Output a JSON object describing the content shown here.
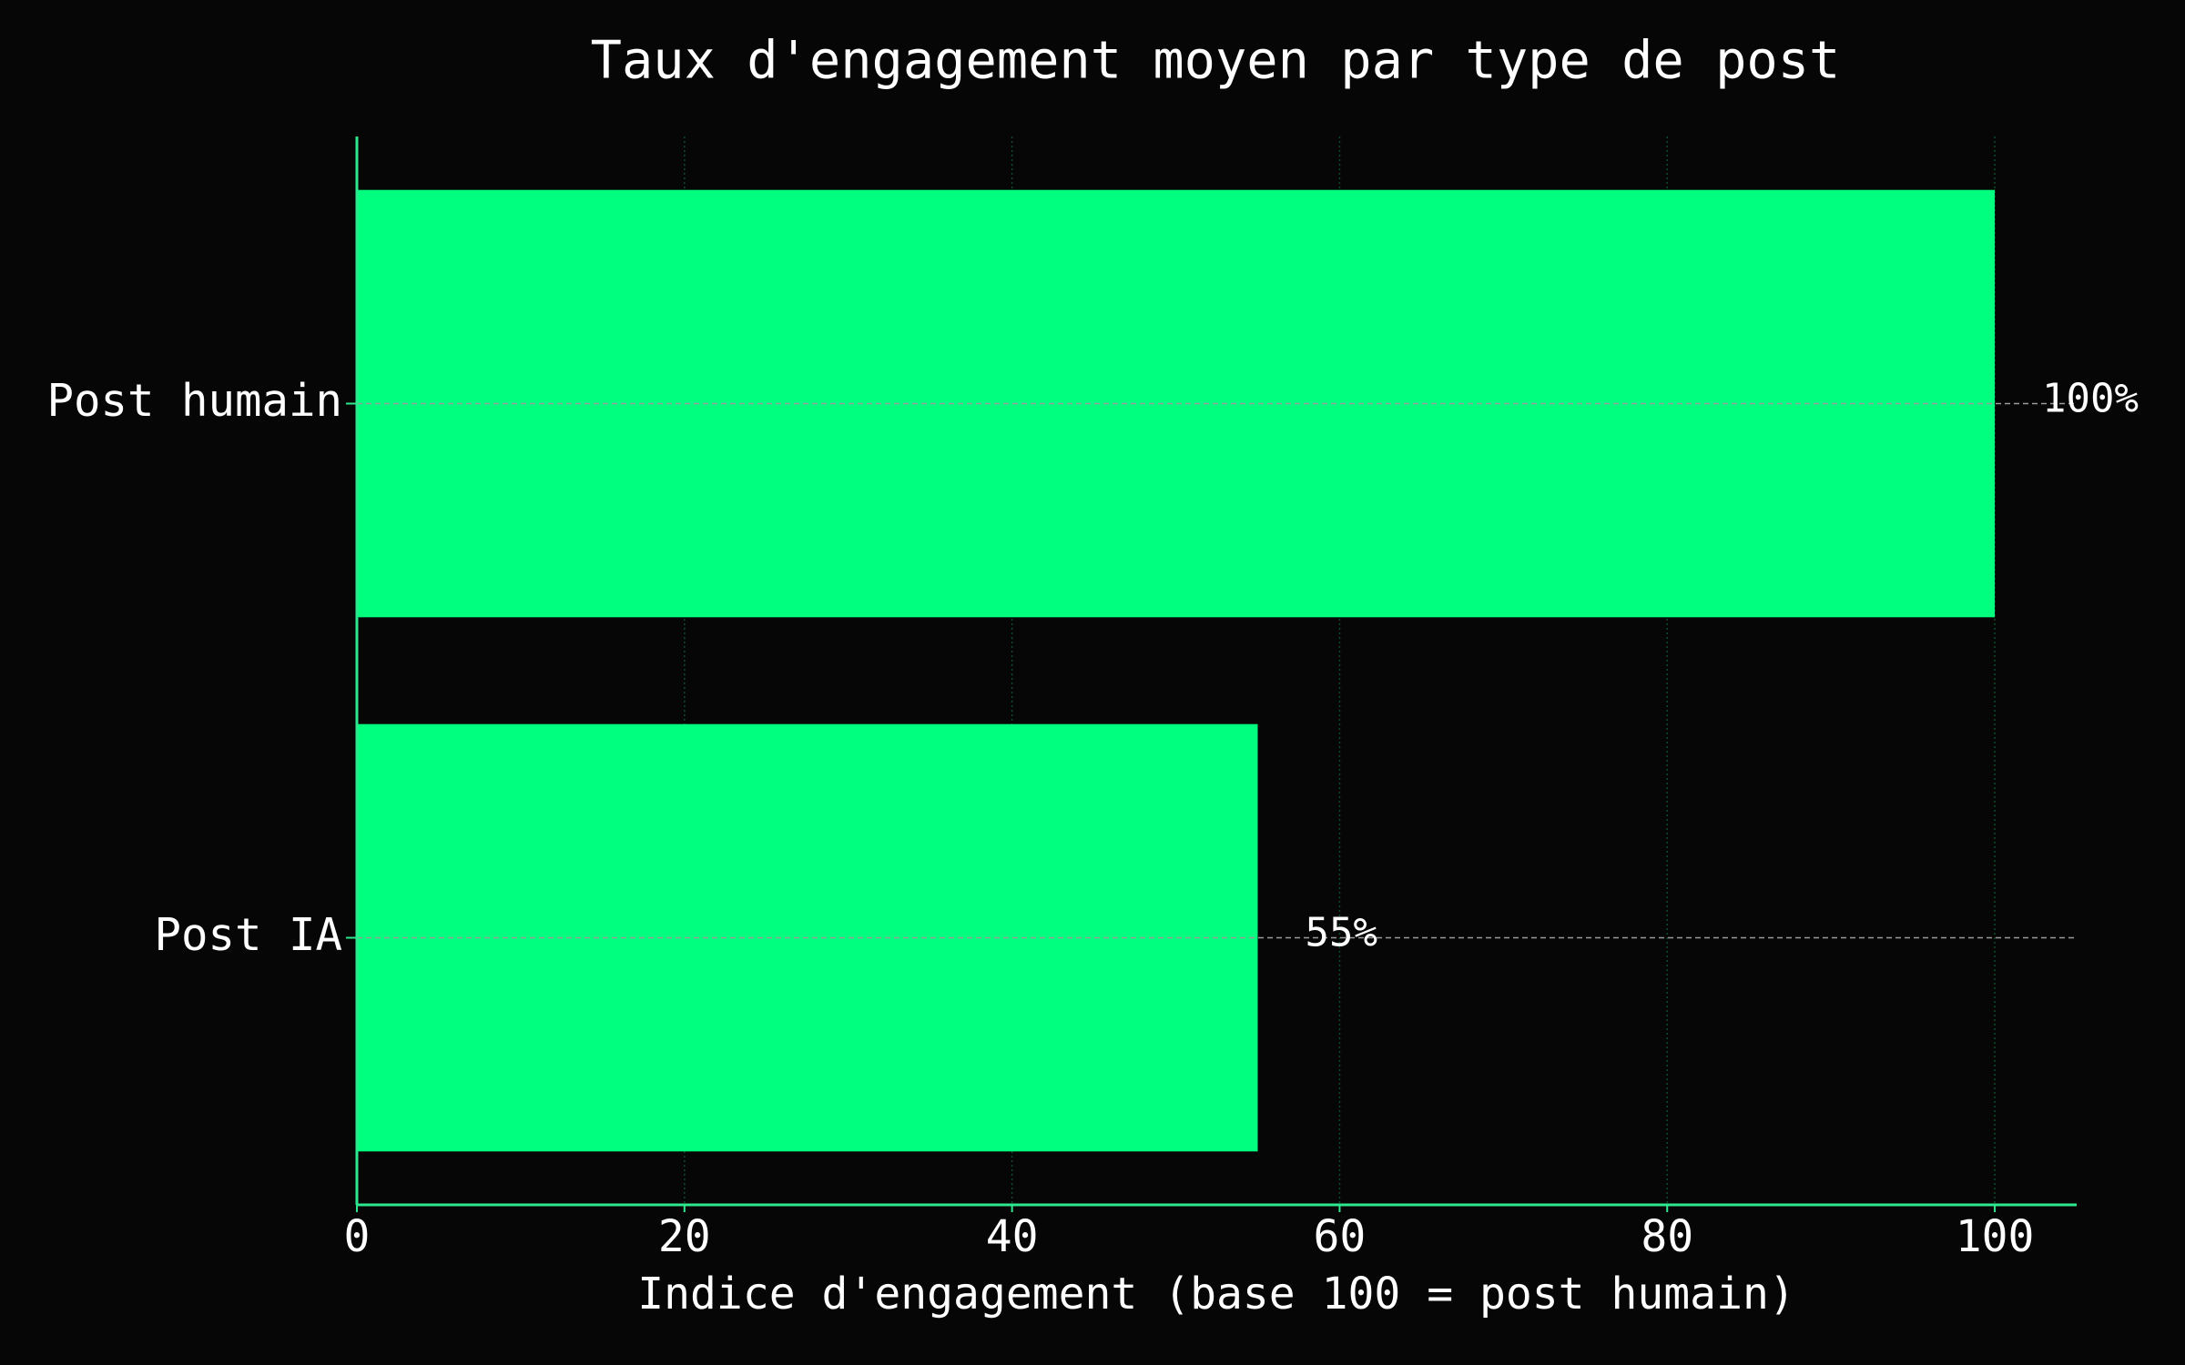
{
  "chart_data": {
    "type": "hbar",
    "title": "Taux d'engagement moyen par type de post",
    "x_label": "Indice d'engagement (base 100 = post humain)",
    "categories": [
      "Post humain",
      "Post IA"
    ],
    "values": [
      100,
      55
    ],
    "value_labels": [
      "100%",
      "55%"
    ],
    "color": "#00ff7f",
    "xlim": [
      0,
      105
    ],
    "xticks": [
      0,
      20,
      40,
      60,
      80,
      100
    ],
    "grid": true
  }
}
